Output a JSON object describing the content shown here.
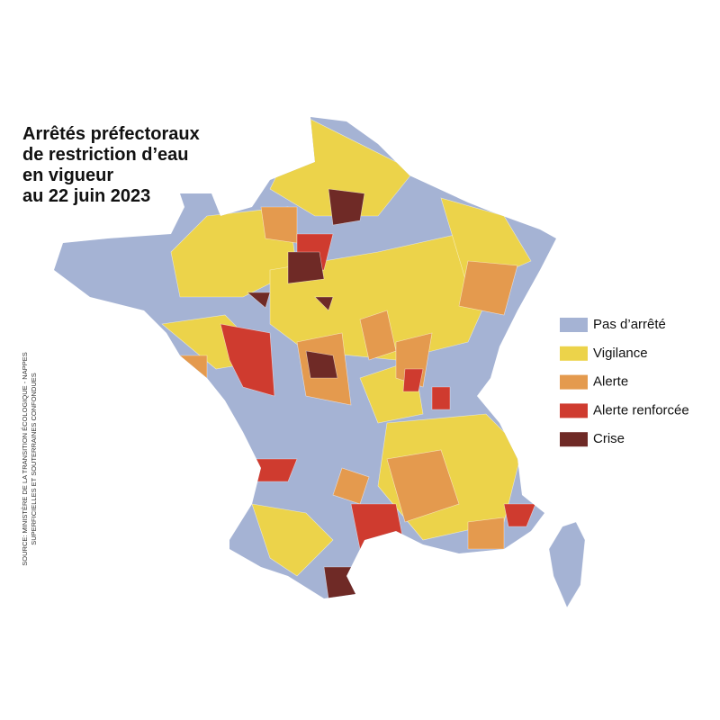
{
  "map": {
    "title_lines": [
      "Arrêtés préfectoraux",
      "de restriction d’eau",
      "en vigueur",
      "au 22 juin 2023"
    ],
    "legend": [
      {
        "label": "Pas d’arrêté",
        "color": "#a5b3d4"
      },
      {
        "label": "Vigilance",
        "color": "#ecd34a"
      },
      {
        "label": "Alerte",
        "color": "#e49a4e"
      },
      {
        "label": "Alerte renforcée",
        "color": "#cf3b2f"
      },
      {
        "label": "Crise",
        "color": "#6f2a26"
      }
    ],
    "source_lines": [
      "SOURCE: MINISTÈRE DE LA TRANSITION ÉCOLOGIQUE - NAPPES",
      "SUPERFICIELLES ET SOUTERRAINES CONFONDUES"
    ]
  }
}
